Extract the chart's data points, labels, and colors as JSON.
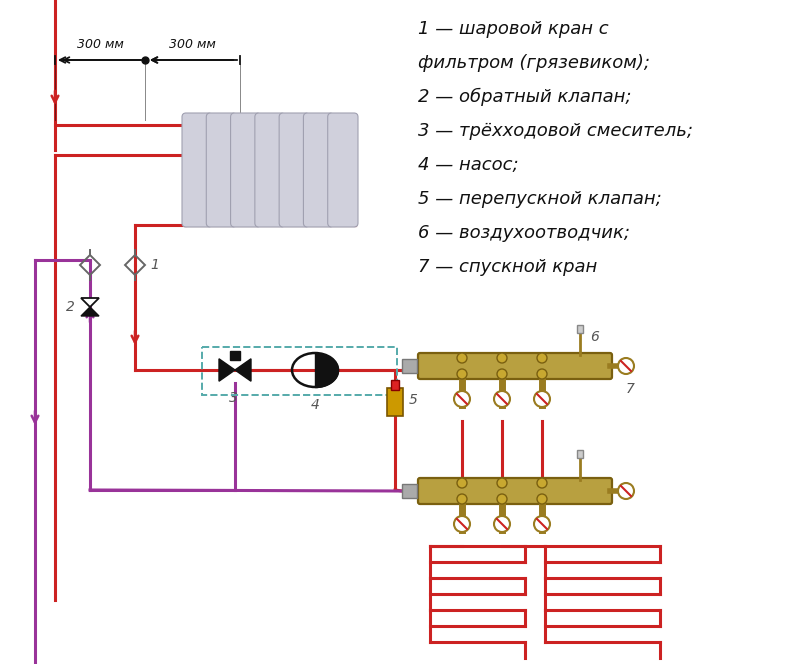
{
  "legend": [
    "1 — шаровой кран с",
    "фильтром (грязевиком);",
    "2 — обратный клапан;",
    "3 — трёхходовой смеситель;",
    "4 — насос;",
    "5 — перепускной клапан;",
    "6 — воздухоотводчик;",
    "7 — спускной кран"
  ],
  "dim300": "300 мм",
  "red": "#cc2222",
  "purple": "#993399",
  "gold": "#b8a040",
  "dark": "#111111",
  "gray_light": "#cccccc",
  "teal": "#55aaaa",
  "bg": "#ffffff",
  "valve_gray": "#888888"
}
